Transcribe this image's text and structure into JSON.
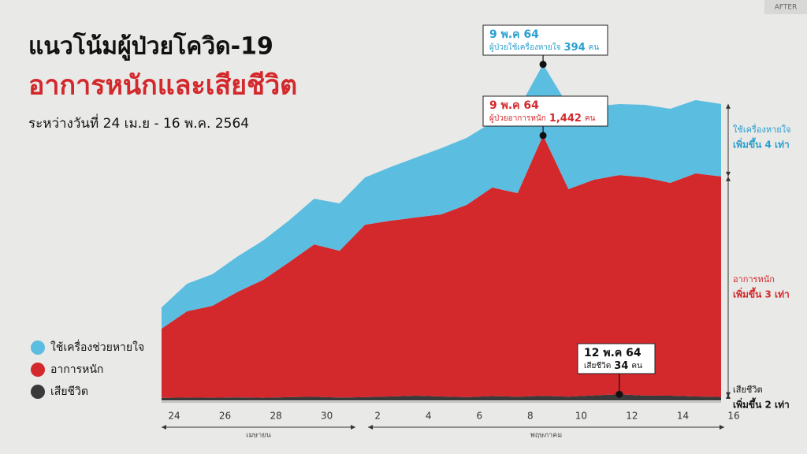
{
  "badge": "AFTER",
  "chart_data": {
    "type": "stacked-area",
    "title": "แนวโน้มผู้ป่วยโควิด-19",
    "subtitle": "อาการหนักและเสียชีวิต",
    "period": "ระหว่างวันที่ 24 เม.ย - 16 พ.ค. 2564",
    "categories": [
      "24",
      null,
      "26",
      null,
      "28",
      null,
      "30",
      null,
      "2",
      null,
      "4",
      null,
      "6",
      null,
      "8",
      null,
      "10",
      null,
      "12",
      null,
      "14",
      null,
      "16"
    ],
    "months": [
      "เมษายน",
      "พฤษภาคม"
    ],
    "ylim": [
      0,
      2200
    ],
    "series": [
      {
        "name": "ใช้เครื่องช่วยหายใจ",
        "color": "#5bbde0",
        "values": [
          118,
          153,
          175,
          196,
          218,
          231,
          253,
          262,
          262,
          297,
          332,
          367,
          371,
          362,
          458,
          394,
          458,
          406,
          393,
          402,
          410,
          406,
          402
        ]
      },
      {
        "name": "อาการหนัก",
        "color": "#d3282c",
        "values": [
          383,
          477,
          509,
          585,
          653,
          746,
          844,
          813,
          955,
          973,
          987,
          1008,
          1065,
          1155,
          1128,
          1442,
          1149,
          1194,
          1214,
          1208,
          1179,
          1235,
          1221
        ]
      },
      {
        "name": "เสียชีวิต",
        "color": "#3a3a3a",
        "values": [
          14,
          16,
          15,
          17,
          15,
          18,
          20,
          16,
          18,
          22,
          26,
          22,
          18,
          24,
          20,
          25,
          21,
          28,
          34,
          27,
          26,
          22,
          19
        ]
      }
    ],
    "annotations": [
      {
        "date": "9 พ.ค 64",
        "text": "ผู้ป่วยใช้เครื่องหายใจ",
        "number": "394",
        "unit": "คน"
      },
      {
        "date": "9 พ.ค 64",
        "text": "ผู้ป่วยอาการหนัก",
        "number": "1,442",
        "unit": "คน"
      },
      {
        "date": "12 พ.ค 64",
        "text": "เสียชีวิต",
        "number": "34",
        "unit": "คน"
      }
    ],
    "side_notes": [
      {
        "label": "ใช้เครื่องหายใจ",
        "change": "เพิ่มขึ้น 4 เท่า"
      },
      {
        "label": "อาการหนัก",
        "change": "เพิ่มขึ้น 3 เท่า"
      },
      {
        "label": "เสียชีวิต",
        "change": "เพิ่มขึ้น 2 เท่า"
      }
    ]
  }
}
